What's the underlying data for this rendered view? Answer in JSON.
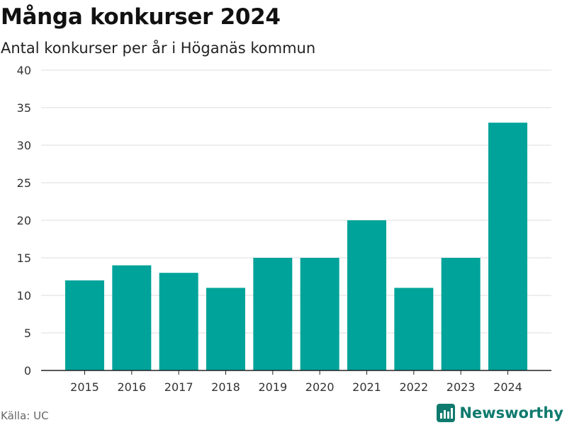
{
  "title": "Många konkurser 2024",
  "subtitle": "Antal konkurser per år i Höganäs kommun",
  "source": "Källa: UC",
  "brand": {
    "name": "Newsworthy",
    "icon": "newsworthy-logo-icon"
  },
  "colors": {
    "bar": "#00a39a",
    "grid": "#dddddd",
    "axis": "#222222",
    "brand": "#0f7a6e"
  },
  "chart_data": {
    "type": "bar",
    "categories": [
      "2015",
      "2016",
      "2017",
      "2018",
      "2019",
      "2020",
      "2021",
      "2022",
      "2023",
      "2024"
    ],
    "values": [
      12,
      14,
      13,
      11,
      15,
      15,
      20,
      11,
      15,
      33
    ],
    "yticks": [
      0,
      5,
      10,
      15,
      20,
      25,
      30,
      35,
      40
    ],
    "ylim": [
      0,
      40
    ],
    "grid": true,
    "xlabel": "",
    "ylabel": ""
  }
}
